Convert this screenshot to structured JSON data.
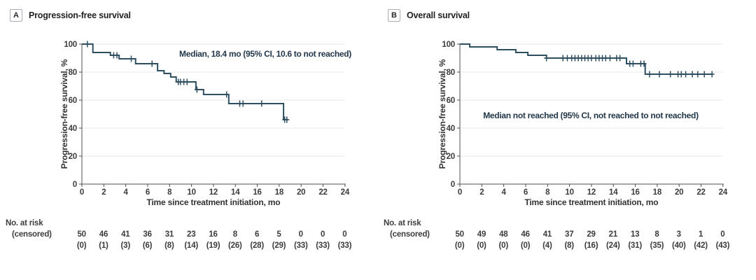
{
  "figure": {
    "background": "#ffffff"
  },
  "chart_data": [
    {
      "type": "line",
      "subtype": "kaplan-meier-step",
      "panel_letter": "A",
      "panel_title": "Progression-free survival",
      "annotation": "Median, 18.4 mo (95% CI, 10.6 to not reached)",
      "xlabel": "Time since treatment initiation, mo",
      "ylabel": "Progression-free survival, %",
      "xlim": [
        0,
        24
      ],
      "ylim": [
        0,
        100
      ],
      "xticks": [
        0,
        2,
        4,
        6,
        8,
        10,
        12,
        14,
        16,
        18,
        20,
        22,
        24
      ],
      "yticks": [
        0,
        20,
        40,
        60,
        80,
        100
      ],
      "grid": "horizontal-light",
      "legend": "none",
      "curve_color": "#2e4f60",
      "km_curve": {
        "start": [
          0,
          100
        ],
        "drops": [
          [
            1.0,
            94
          ],
          [
            2.6,
            92
          ],
          [
            3.4,
            89.5
          ],
          [
            4.9,
            86
          ],
          [
            6.9,
            81
          ],
          [
            7.5,
            79
          ],
          [
            8.1,
            76.5
          ],
          [
            8.6,
            73
          ],
          [
            10.4,
            67.5
          ],
          [
            11.1,
            64
          ],
          [
            13.4,
            57.5
          ],
          [
            18.4,
            46
          ]
        ],
        "end_time": 18.8,
        "median_months": 18.4,
        "ci95": "10.6 to not reached"
      },
      "censor_marks": [
        [
          0.5,
          100
        ],
        [
          2.9,
          92
        ],
        [
          3.2,
          92
        ],
        [
          4.5,
          89.5
        ],
        [
          6.4,
          86
        ],
        [
          8.8,
          73
        ],
        [
          9.0,
          73
        ],
        [
          9.3,
          73
        ],
        [
          9.6,
          73
        ],
        [
          10.5,
          67.5
        ],
        [
          13.2,
          64
        ],
        [
          14.4,
          57.5
        ],
        [
          14.7,
          57.5
        ],
        [
          16.4,
          57.5
        ],
        [
          18.5,
          46
        ],
        [
          18.7,
          46
        ]
      ],
      "at_risk": {
        "row1_label": "No. at risk",
        "row2_label": "(censored)",
        "times": [
          0,
          2,
          4,
          6,
          8,
          10,
          12,
          14,
          16,
          18,
          20,
          22,
          24
        ],
        "risk": [
          "50",
          "46",
          "41",
          "36",
          "31",
          "23",
          "16",
          "8",
          "6",
          "5",
          "0",
          "0",
          "0"
        ],
        "censored": [
          "(0)",
          "(1)",
          "(3)",
          "(6)",
          "(8)",
          "(14)",
          "(19)",
          "(26)",
          "(28)",
          "(29)",
          "(33)",
          "(33)",
          "(33)"
        ]
      }
    },
    {
      "type": "line",
      "subtype": "kaplan-meier-step",
      "panel_letter": "B",
      "panel_title": "Overall survival",
      "annotation": "Median not reached (95% CI, not reached to not reached)",
      "xlabel": "Time since treatment initiation, mo",
      "ylabel": "Progression-free survival, %",
      "xlim": [
        0,
        24
      ],
      "ylim": [
        0,
        100
      ],
      "xticks": [
        0,
        2,
        4,
        6,
        8,
        10,
        12,
        14,
        16,
        18,
        20,
        22,
        24
      ],
      "yticks": [
        0,
        20,
        40,
        60,
        80,
        100
      ],
      "grid": "horizontal-light",
      "legend": "none",
      "curve_color": "#2e4f60",
      "km_curve": {
        "start": [
          0,
          100
        ],
        "drops": [
          [
            0.9,
            98
          ],
          [
            3.4,
            96
          ],
          [
            5.1,
            94
          ],
          [
            6.2,
            92
          ],
          [
            7.9,
            90
          ],
          [
            15.2,
            86
          ],
          [
            16.9,
            78.5
          ]
        ],
        "end_time": 23.0,
        "median_months": null,
        "ci95": "not reached to not reached"
      },
      "censor_marks": [
        [
          7.9,
          90
        ],
        [
          9.4,
          90
        ],
        [
          9.8,
          90
        ],
        [
          10.2,
          90
        ],
        [
          10.5,
          90
        ],
        [
          10.8,
          90
        ],
        [
          11.1,
          90
        ],
        [
          11.4,
          90
        ],
        [
          11.7,
          90
        ],
        [
          12.0,
          90
        ],
        [
          12.4,
          90
        ],
        [
          12.7,
          90
        ],
        [
          13.0,
          90
        ],
        [
          13.3,
          90
        ],
        [
          13.7,
          90
        ],
        [
          14.3,
          90
        ],
        [
          14.6,
          90
        ],
        [
          15.5,
          86
        ],
        [
          15.8,
          86
        ],
        [
          16.5,
          86
        ],
        [
          16.8,
          86
        ],
        [
          17.3,
          78.5
        ],
        [
          18.2,
          78.5
        ],
        [
          19.2,
          78.5
        ],
        [
          19.9,
          78.5
        ],
        [
          20.2,
          78.5
        ],
        [
          20.6,
          78.5
        ],
        [
          21.2,
          78.5
        ],
        [
          21.7,
          78.5
        ],
        [
          22.3,
          78.5
        ],
        [
          23.0,
          78.5
        ]
      ],
      "at_risk": {
        "row1_label": "No. at risk",
        "row2_label": "(censored)",
        "times": [
          0,
          2,
          4,
          6,
          8,
          10,
          12,
          14,
          16,
          18,
          20,
          22,
          24
        ],
        "risk": [
          "50",
          "49",
          "48",
          "46",
          "41",
          "37",
          "29",
          "21",
          "13",
          "8",
          "3",
          "1",
          "0"
        ],
        "censored": [
          "(0)",
          "(0)",
          "(0)",
          "(0)",
          "(4)",
          "(8)",
          "(16)",
          "(24)",
          "(31)",
          "(35)",
          "(40)",
          "(42)",
          "(43)"
        ]
      }
    }
  ],
  "style_colors": {
    "curve": "#2e4f60",
    "gridline": "#e8e8e8",
    "axis_line": "#4f4f4f",
    "tick_text": "#3c3c3c",
    "axis_label_text": "#333333",
    "annotation_text": "#22374a",
    "panel_title_text": "#222222"
  }
}
